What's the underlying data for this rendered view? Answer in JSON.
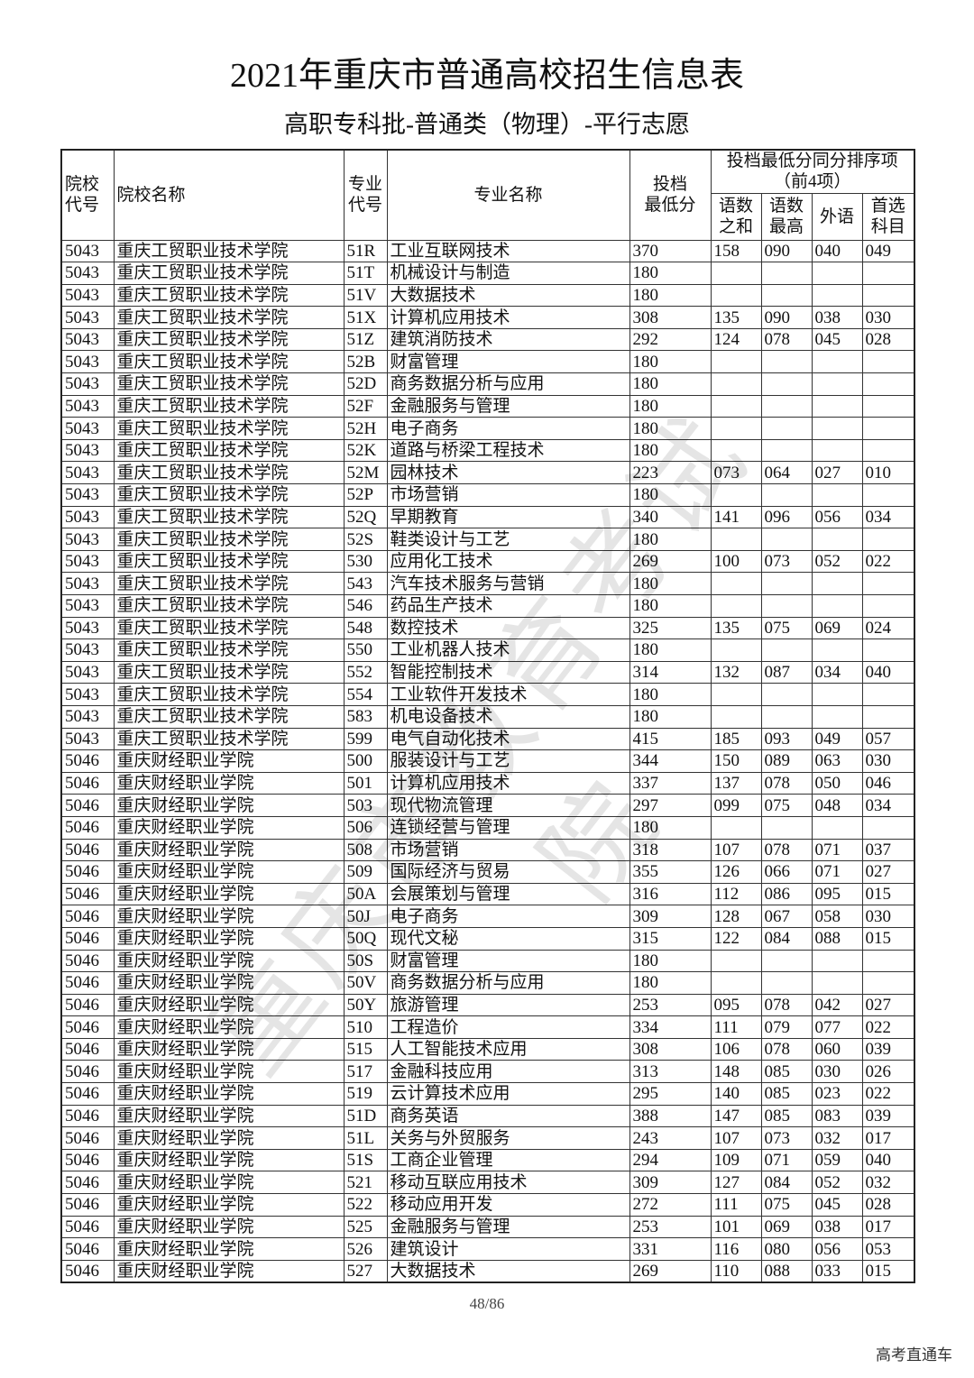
{
  "header": {
    "title": "2021年重庆市普通高校招生信息表",
    "subtitle": "高职专科批-普通类（物理）-平行志愿"
  },
  "table": {
    "columns": {
      "school_code": [
        "院校",
        "代号"
      ],
      "school_name": "院校名称",
      "major_code": [
        "专业",
        "代号"
      ],
      "major_name": "专业名称",
      "min_score": [
        "投档",
        "最低分"
      ],
      "tiebreak_group": [
        "投档最低分同分排序项",
        "（前4项）"
      ],
      "tiebreak": [
        [
          "语数",
          "之和"
        ],
        [
          "语数",
          "最高"
        ],
        [
          "外语"
        ],
        [
          "首选",
          "科目"
        ]
      ]
    },
    "rows": [
      [
        "5043",
        "重庆工贸职业技术学院",
        "51R",
        "工业互联网技术",
        370,
        "158",
        "090",
        "040",
        "049"
      ],
      [
        "5043",
        "重庆工贸职业技术学院",
        "51T",
        "机械设计与制造",
        180,
        null,
        null,
        null,
        null
      ],
      [
        "5043",
        "重庆工贸职业技术学院",
        "51V",
        "大数据技术",
        180,
        null,
        null,
        null,
        null
      ],
      [
        "5043",
        "重庆工贸职业技术学院",
        "51X",
        "计算机应用技术",
        308,
        "135",
        "090",
        "038",
        "030"
      ],
      [
        "5043",
        "重庆工贸职业技术学院",
        "51Z",
        "建筑消防技术",
        292,
        "124",
        "078",
        "045",
        "028"
      ],
      [
        "5043",
        "重庆工贸职业技术学院",
        "52B",
        "财富管理",
        180,
        null,
        null,
        null,
        null
      ],
      [
        "5043",
        "重庆工贸职业技术学院",
        "52D",
        "商务数据分析与应用",
        180,
        null,
        null,
        null,
        null
      ],
      [
        "5043",
        "重庆工贸职业技术学院",
        "52F",
        "金融服务与管理",
        180,
        null,
        null,
        null,
        null
      ],
      [
        "5043",
        "重庆工贸职业技术学院",
        "52H",
        "电子商务",
        180,
        null,
        null,
        null,
        null
      ],
      [
        "5043",
        "重庆工贸职业技术学院",
        "52K",
        "道路与桥梁工程技术",
        180,
        null,
        null,
        null,
        null
      ],
      [
        "5043",
        "重庆工贸职业技术学院",
        "52M",
        "园林技术",
        223,
        "073",
        "064",
        "027",
        "010"
      ],
      [
        "5043",
        "重庆工贸职业技术学院",
        "52P",
        "市场营销",
        180,
        null,
        null,
        null,
        null
      ],
      [
        "5043",
        "重庆工贸职业技术学院",
        "52Q",
        "早期教育",
        340,
        "141",
        "096",
        "056",
        "034"
      ],
      [
        "5043",
        "重庆工贸职业技术学院",
        "52S",
        "鞋类设计与工艺",
        180,
        null,
        null,
        null,
        null
      ],
      [
        "5043",
        "重庆工贸职业技术学院",
        "530",
        "应用化工技术",
        269,
        "100",
        "073",
        "052",
        "022"
      ],
      [
        "5043",
        "重庆工贸职业技术学院",
        "543",
        "汽车技术服务与营销",
        180,
        null,
        null,
        null,
        null
      ],
      [
        "5043",
        "重庆工贸职业技术学院",
        "546",
        "药品生产技术",
        180,
        null,
        null,
        null,
        null
      ],
      [
        "5043",
        "重庆工贸职业技术学院",
        "548",
        "数控技术",
        325,
        "135",
        "075",
        "069",
        "024"
      ],
      [
        "5043",
        "重庆工贸职业技术学院",
        "550",
        "工业机器人技术",
        180,
        null,
        null,
        null,
        null
      ],
      [
        "5043",
        "重庆工贸职业技术学院",
        "552",
        "智能控制技术",
        314,
        "132",
        "087",
        "034",
        "040"
      ],
      [
        "5043",
        "重庆工贸职业技术学院",
        "554",
        "工业软件开发技术",
        180,
        null,
        null,
        null,
        null
      ],
      [
        "5043",
        "重庆工贸职业技术学院",
        "583",
        "机电设备技术",
        180,
        null,
        null,
        null,
        null
      ],
      [
        "5043",
        "重庆工贸职业技术学院",
        "599",
        "电气自动化技术",
        415,
        "185",
        "093",
        "049",
        "057"
      ],
      [
        "5046",
        "重庆财经职业学院",
        "500",
        "服装设计与工艺",
        344,
        "150",
        "089",
        "063",
        "030"
      ],
      [
        "5046",
        "重庆财经职业学院",
        "501",
        "计算机应用技术",
        337,
        "137",
        "078",
        "050",
        "046"
      ],
      [
        "5046",
        "重庆财经职业学院",
        "503",
        "现代物流管理",
        297,
        "099",
        "075",
        "048",
        "034"
      ],
      [
        "5046",
        "重庆财经职业学院",
        "506",
        "连锁经营与管理",
        180,
        null,
        null,
        null,
        null
      ],
      [
        "5046",
        "重庆财经职业学院",
        "508",
        "市场营销",
        318,
        "107",
        "078",
        "071",
        "037"
      ],
      [
        "5046",
        "重庆财经职业学院",
        "509",
        "国际经济与贸易",
        355,
        "126",
        "066",
        "071",
        "027"
      ],
      [
        "5046",
        "重庆财经职业学院",
        "50A",
        "会展策划与管理",
        316,
        "112",
        "086",
        "095",
        "015"
      ],
      [
        "5046",
        "重庆财经职业学院",
        "50J",
        "电子商务",
        309,
        "128",
        "067",
        "058",
        "030"
      ],
      [
        "5046",
        "重庆财经职业学院",
        "50Q",
        "现代文秘",
        315,
        "122",
        "084",
        "088",
        "015"
      ],
      [
        "5046",
        "重庆财经职业学院",
        "50S",
        "财富管理",
        180,
        null,
        null,
        null,
        null
      ],
      [
        "5046",
        "重庆财经职业学院",
        "50V",
        "商务数据分析与应用",
        180,
        null,
        null,
        null,
        null
      ],
      [
        "5046",
        "重庆财经职业学院",
        "50Y",
        "旅游管理",
        253,
        "095",
        "078",
        "042",
        "027"
      ],
      [
        "5046",
        "重庆财经职业学院",
        "510",
        "工程造价",
        334,
        "111",
        "079",
        "077",
        "022"
      ],
      [
        "5046",
        "重庆财经职业学院",
        "515",
        "人工智能技术应用",
        308,
        "106",
        "078",
        "060",
        "039"
      ],
      [
        "5046",
        "重庆财经职业学院",
        "517",
        "金融科技应用",
        313,
        "148",
        "085",
        "030",
        "026"
      ],
      [
        "5046",
        "重庆财经职业学院",
        "519",
        "云计算技术应用",
        295,
        "140",
        "085",
        "023",
        "022"
      ],
      [
        "5046",
        "重庆财经职业学院",
        "51D",
        "商务英语",
        388,
        "147",
        "085",
        "083",
        "039"
      ],
      [
        "5046",
        "重庆财经职业学院",
        "51L",
        "关务与外贸服务",
        243,
        "107",
        "073",
        "032",
        "017"
      ],
      [
        "5046",
        "重庆财经职业学院",
        "51S",
        "工商企业管理",
        294,
        "109",
        "071",
        "059",
        "040"
      ],
      [
        "5046",
        "重庆财经职业学院",
        "521",
        "移动互联应用技术",
        309,
        "127",
        "084",
        "052",
        "032"
      ],
      [
        "5046",
        "重庆财经职业学院",
        "522",
        "移动应用开发",
        272,
        "111",
        "075",
        "045",
        "028"
      ],
      [
        "5046",
        "重庆财经职业学院",
        "525",
        "金融服务与管理",
        253,
        "101",
        "069",
        "038",
        "017"
      ],
      [
        "5046",
        "重庆财经职业学院",
        "526",
        "建筑设计",
        331,
        "116",
        "080",
        "056",
        "053"
      ],
      [
        "5046",
        "重庆财经职业学院",
        "527",
        "大数据技术",
        269,
        "110",
        "088",
        "033",
        "015"
      ]
    ]
  },
  "footer": {
    "page": "48/86",
    "watermark": "重庆市教育考试院",
    "source": "高考直通车"
  }
}
